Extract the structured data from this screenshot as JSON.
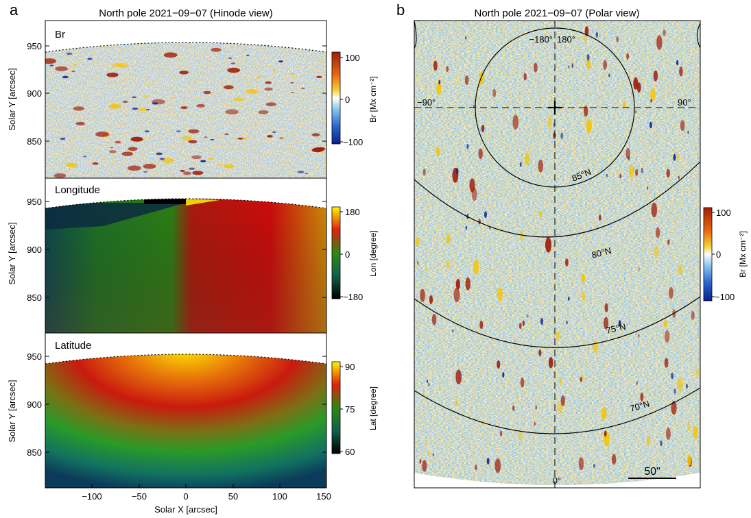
{
  "panel_a": {
    "letter": "a",
    "title": "North pole  2021−09−07  (Hinode view)",
    "x_label": "Solar X [arcsec]",
    "x_ticks": [
      "−100",
      "−50",
      "0",
      "50",
      "100",
      "150"
    ],
    "y_label": "Solar Y [arcsec]",
    "subpanels": [
      {
        "label": "Br",
        "y_ticks": [
          "950",
          "900",
          "850"
        ],
        "colorbar": {
          "label": "Br [Mx cm⁻²]",
          "ticks": [
            "100",
            "0",
            "−100"
          ],
          "colormap": "blue-white-yellow-red"
        }
      },
      {
        "label": "Longitude",
        "y_ticks": [
          "950",
          "900",
          "850"
        ],
        "colorbar": {
          "label": "Lon [degree]",
          "ticks": [
            "180",
            "0",
            "−180"
          ],
          "colormap": "black-green-red-yellow"
        }
      },
      {
        "label": "Latitude",
        "y_ticks": [
          "950",
          "900",
          "850"
        ],
        "colorbar": {
          "label": "Lat [degree]",
          "ticks": [
            "90",
            "75",
            "60"
          ],
          "colormap": "black-green-red-yellow"
        }
      }
    ]
  },
  "panel_b": {
    "letter": "b",
    "title": "North pole  2021−09−07  (Polar view)",
    "pole_labels": {
      "left": "−90°",
      "right": "90°",
      "top_left": "−180°",
      "top_right": "180°",
      "bottom": "0°"
    },
    "latitude_circles": [
      "85°N",
      "80°N",
      "75°N",
      "70°N"
    ],
    "scale_bar": "50\"",
    "colorbar": {
      "label": "Br [Mx cm⁻²]",
      "ticks": [
        "100",
        "0",
        "−100"
      ]
    }
  },
  "colors": {
    "br_negative": "#0a1f8f",
    "br_positive": "#a01e0a",
    "br_mid": "#f6c400",
    "lon_negative": "#1f6e1f",
    "lon_positive": "#d80e0e"
  }
}
